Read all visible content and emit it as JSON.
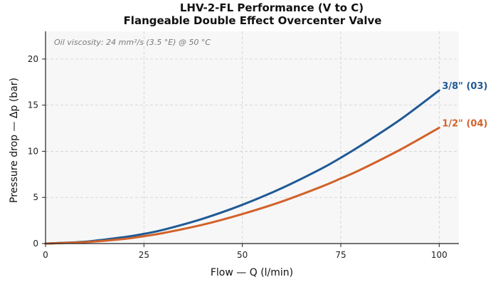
{
  "chart_data": {
    "type": "line",
    "title": "LHV-2-FL Performance (V to C)",
    "subtitle": "Flangeable Double Effect Overcenter Valve",
    "xlabel": "Flow — Q (l/min)",
    "ylabel": "Pressure drop — Δp (bar)",
    "xlim": [
      0,
      105
    ],
    "ylim": [
      0,
      23
    ],
    "xticks": [
      0,
      25,
      50,
      75,
      100
    ],
    "yticks": [
      0,
      5,
      10,
      15,
      20
    ],
    "grid": true,
    "annotation": "Oil viscosity: 24 mm²/s (3.5 °E) @ 50 °C",
    "series": [
      {
        "name": "3/8\" (03)",
        "color": "#1f5a96",
        "x": [
          0,
          10,
          20,
          25,
          30,
          40,
          50,
          60,
          70,
          75,
          80,
          90,
          100
        ],
        "values": [
          0,
          0.2,
          0.7,
          1.05,
          1.5,
          2.7,
          4.2,
          6.0,
          8.1,
          9.3,
          10.6,
          13.4,
          16.6
        ]
      },
      {
        "name": "1/2\" (04)",
        "color": "#d2622a",
        "x": [
          0,
          10,
          20,
          25,
          30,
          40,
          50,
          60,
          70,
          75,
          80,
          90,
          100
        ],
        "values": [
          0,
          0.15,
          0.5,
          0.8,
          1.15,
          2.05,
          3.2,
          4.55,
          6.15,
          7.05,
          8.0,
          10.15,
          12.55
        ]
      }
    ]
  }
}
